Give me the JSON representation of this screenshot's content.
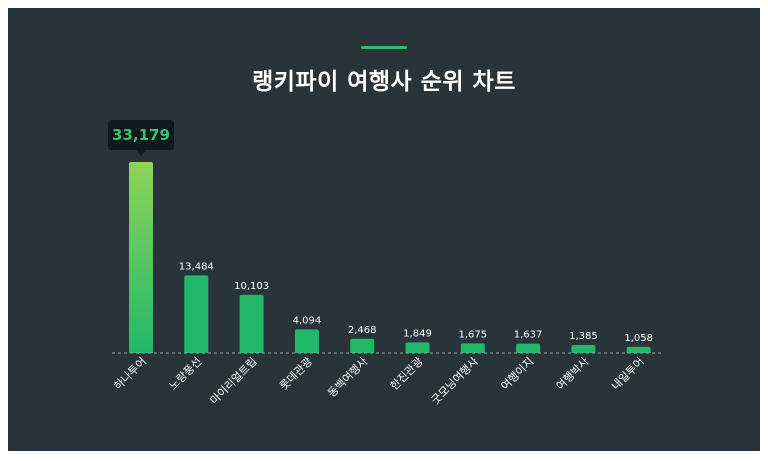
{
  "title": "랭키파이 여행사 순위 차트",
  "colors": {
    "background": "#283439",
    "accent": "#2ebd6b",
    "bar_top_highlight": "#8fd45a",
    "bar": "#22b86a",
    "tooltip_bg": "#0f1a1e",
    "tooltip_text": "#35c46f"
  },
  "chart_data": {
    "type": "bar",
    "title": "랭키파이 여행사 순위 차트",
    "categories": [
      "하나투어",
      "노랑풍선",
      "마이리얼트립",
      "롯데관광",
      "동백여행사",
      "한진관광",
      "굿모닝여행사",
      "여행이지",
      "여행박사",
      "내일투어"
    ],
    "values": [
      33179,
      13484,
      10103,
      4094,
      2468,
      1849,
      1675,
      1637,
      1385,
      1058
    ],
    "value_labels": [
      "33,179",
      "13,484",
      "10,103",
      "4,094",
      "2,468",
      "1,849",
      "1,675",
      "1,637",
      "1,385",
      "1,058"
    ],
    "highlighted_index": 0,
    "xlabel": "",
    "ylabel": "",
    "ylim": [
      0,
      33179
    ],
    "grid": false,
    "legend": "none"
  }
}
